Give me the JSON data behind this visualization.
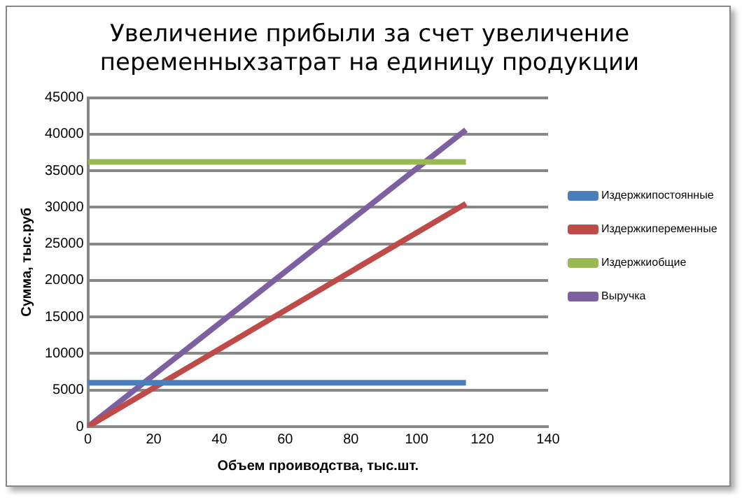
{
  "chart_data": {
    "type": "line",
    "title": [
      "Увеличение прибыли за счет увеличение",
      "переменныхзатрат на единицу продукции"
    ],
    "xlabel": "Объем проиводства, тыс.шт.",
    "ylabel": "Сумма, тыс.руб",
    "x": [
      0,
      115
    ],
    "series": [
      {
        "name": "Издержкипостоянные",
        "color": "#4a7ebb",
        "values": [
          6000,
          6000
        ]
      },
      {
        "name": "Издержкипеременные",
        "color": "#be4b48",
        "values": [
          0,
          30500
        ]
      },
      {
        "name": "Издержкиобщие",
        "color": "#98b954",
        "values": [
          36200,
          36200
        ]
      },
      {
        "name": "Выручка",
        "color": "#7d60a0",
        "values": [
          0,
          40600
        ]
      }
    ],
    "xlim": [
      0,
      140
    ],
    "xticks": [
      0,
      20,
      40,
      60,
      80,
      100,
      120,
      140
    ],
    "ylim": [
      0,
      45000
    ],
    "yticks": [
      0,
      5000,
      10000,
      15000,
      20000,
      25000,
      30000,
      35000,
      40000,
      45000
    ],
    "grid": "y",
    "legend": "right",
    "marker": "none",
    "line_style": "solid"
  }
}
